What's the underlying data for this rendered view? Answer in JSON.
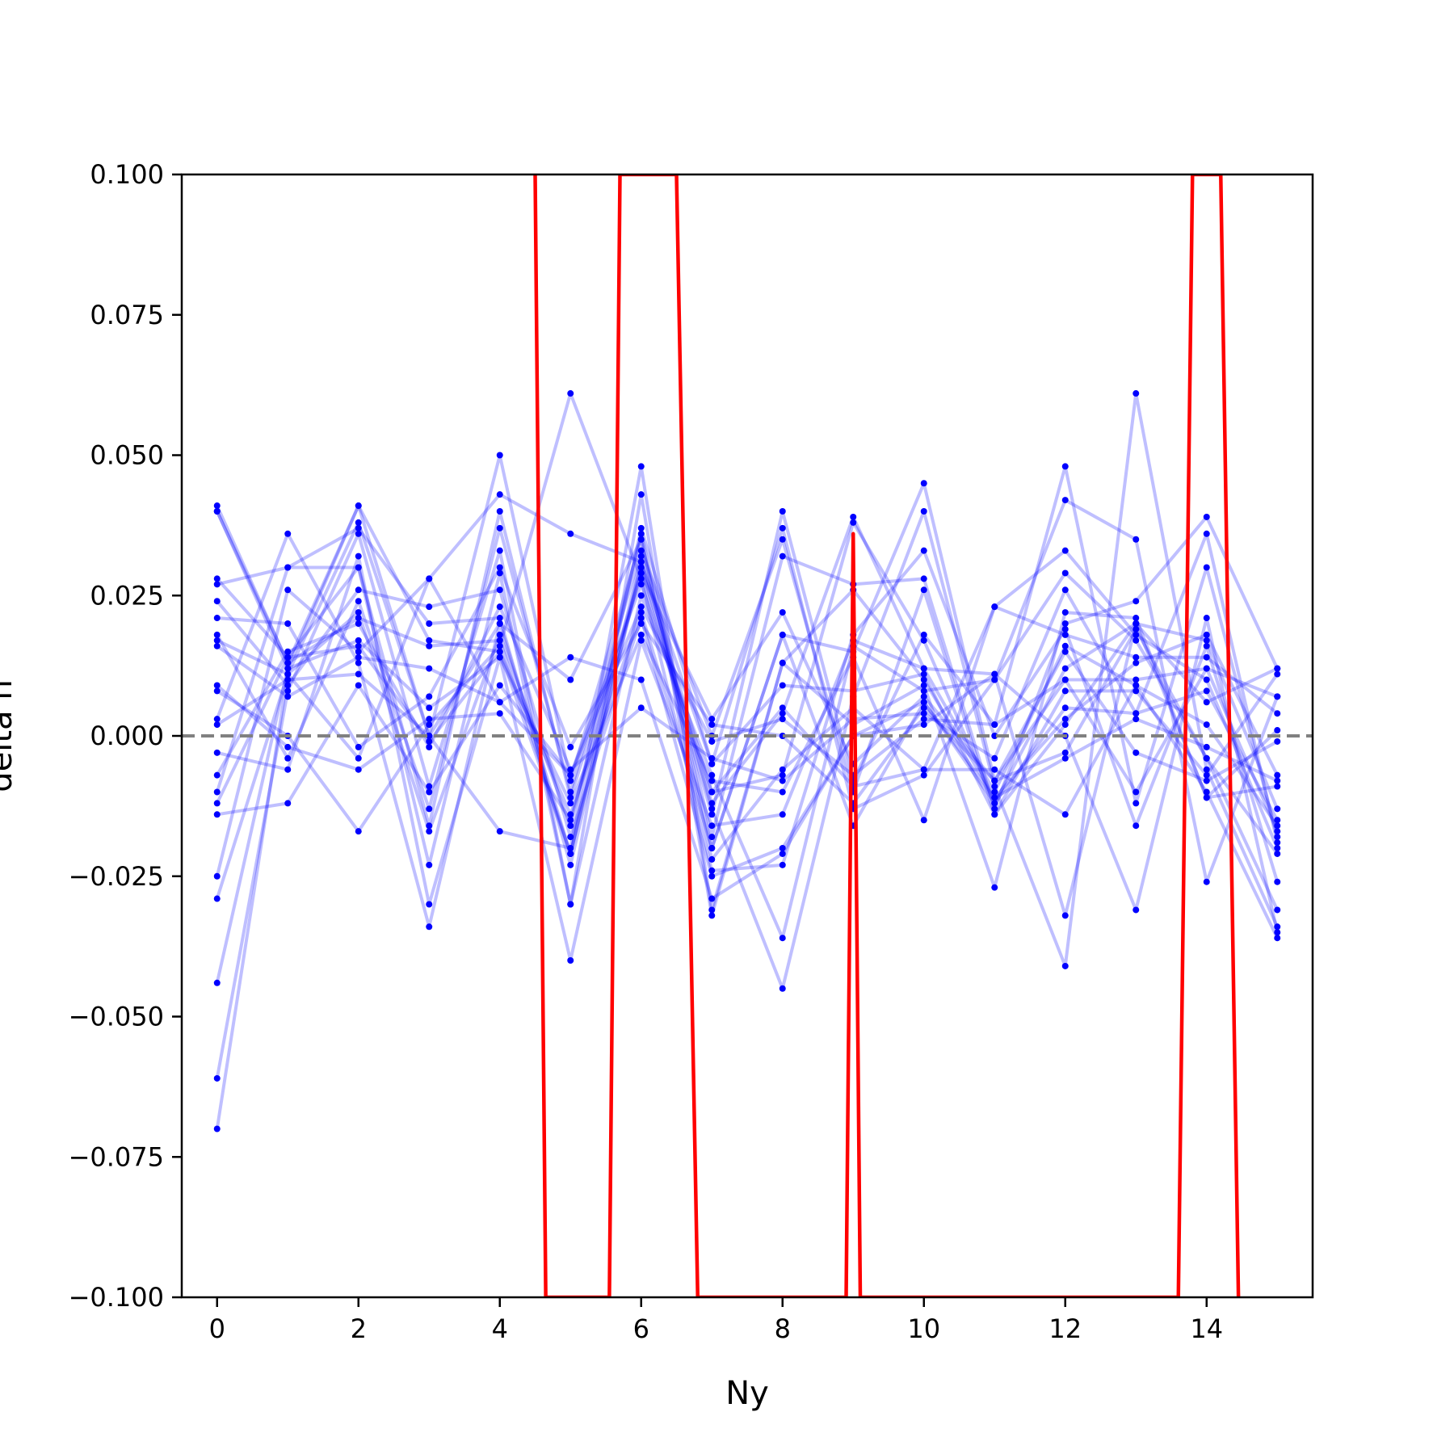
{
  "chart_data": {
    "type": "line",
    "title": "",
    "xlabel": "Ny",
    "ylabel": "delta n",
    "xlim": [
      -0.5,
      15.5
    ],
    "ylim": [
      -0.1,
      0.1
    ],
    "xticks": [
      0,
      2,
      4,
      6,
      8,
      10,
      12,
      14
    ],
    "xtick_labels": [
      "0",
      "2",
      "4",
      "6",
      "8",
      "10",
      "12",
      "14"
    ],
    "yticks": [
      0.1,
      0.075,
      0.05,
      0.025,
      0.0,
      -0.025,
      -0.05,
      -0.075,
      -0.1
    ],
    "ytick_labels": [
      "0.100",
      "0.075",
      "0.050",
      "0.025",
      "0.000",
      "−0.025",
      "−0.050",
      "−0.075",
      "−0.100"
    ],
    "grid": false,
    "reference_line": {
      "y": 0.0,
      "color": "#808080",
      "style": "dashed"
    },
    "colors": {
      "series": "#0000ff",
      "highlight": "#ff0000",
      "reference": "#808080"
    },
    "x": [
      0,
      1,
      2,
      3,
      4,
      5,
      6,
      7,
      8,
      9,
      10,
      11,
      12,
      13,
      14,
      15
    ],
    "series": [
      {
        "values": [
          0.04,
          0.012,
          0.041,
          0.017,
          0.015,
          -0.021,
          0.03,
          -0.012,
          0.004,
          0.039,
          0.012,
          -0.01,
          0.016,
          0.009,
          0.002,
          -0.016
        ]
      },
      {
        "values": [
          -0.07,
          0.011,
          0.038,
          0.0,
          0.05,
          -0.008,
          0.035,
          -0.02,
          0.018,
          0.015,
          0.045,
          -0.008,
          0.01,
          0.01,
          0.012,
          -0.017
        ]
      },
      {
        "values": [
          0.028,
          0.014,
          0.03,
          -0.016,
          0.04,
          -0.011,
          0.029,
          -0.014,
          0.04,
          -0.008,
          0.018,
          0.002,
          0.048,
          -0.012,
          0.03,
          -0.018
        ]
      },
      {
        "values": [
          -0.061,
          0.008,
          0.036,
          -0.009,
          0.033,
          -0.03,
          0.025,
          -0.007,
          -0.036,
          0.016,
          0.008,
          0.01,
          0.029,
          0.017,
          -0.004,
          -0.031
        ]
      },
      {
        "values": [
          0.017,
          0.011,
          0.022,
          -0.017,
          0.018,
          -0.016,
          0.036,
          -0.018,
          0.032,
          0.027,
          0.028,
          -0.013,
          0.02,
          0.024,
          0.039,
          0.012
        ]
      },
      {
        "values": [
          0.024,
          0.009,
          0.026,
          0.023,
          0.026,
          -0.018,
          0.021,
          -0.025,
          -0.02,
          0.0,
          0.002,
          0.011,
          -0.032,
          0.02,
          0.017,
          -0.013
        ]
      },
      {
        "values": [
          0.003,
          0.036,
          0.013,
          -0.034,
          0.02,
          -0.021,
          0.032,
          -0.013,
          -0.045,
          0.007,
          0.04,
          -0.009,
          -0.041,
          0.061,
          -0.006,
          -0.034
        ]
      },
      {
        "values": [
          -0.044,
          0.012,
          0.017,
          0.005,
          0.014,
          -0.012,
          0.018,
          -0.008,
          -0.01,
          0.014,
          -0.015,
          0.023,
          0.033,
          0.018,
          0.01,
          -0.02
        ]
      },
      {
        "values": [
          0.041,
          0.013,
          0.041,
          0.0,
          -0.017,
          -0.02,
          0.048,
          -0.031,
          0.013,
          0.002,
          0.009,
          -0.027,
          0.022,
          0.021,
          -0.011,
          -0.009
        ]
      },
      {
        "values": [
          -0.025,
          0.026,
          0.015,
          0.028,
          0.043,
          0.036,
          0.031,
          -0.005,
          0.037,
          -0.013,
          -0.007,
          0.01,
          0.042,
          0.035,
          -0.026,
          0.007
        ]
      },
      {
        "values": [
          -0.01,
          0.03,
          0.03,
          -0.023,
          0.029,
          -0.03,
          0.043,
          -0.032,
          0.013,
          0.026,
          0.01,
          -0.011,
          0.003,
          0.013,
          0.018,
          -0.007
        ]
      },
      {
        "values": [
          0.021,
          0.02,
          -0.002,
          0.007,
          0.03,
          -0.002,
          0.02,
          0.002,
          0.0,
          -0.012,
          0.005,
          -0.008,
          0.015,
          -0.003,
          -0.008,
          -0.001
        ]
      },
      {
        "values": [
          0.008,
          0.0,
          -0.017,
          0.002,
          0.016,
          0.061,
          0.028,
          -0.024,
          -0.023,
          0.018,
          0.033,
          0.0,
          0.019,
          -0.016,
          0.016,
          -0.026
        ]
      },
      {
        "values": [
          -0.014,
          -0.012,
          0.009,
          -0.01,
          0.009,
          -0.007,
          0.027,
          -0.01,
          0.005,
          -0.009,
          -0.006,
          -0.006,
          -0.014,
          0.009,
          -0.01,
          -0.036
        ]
      },
      {
        "values": [
          0.016,
          0.007,
          0.014,
          0.012,
          0.006,
          0.014,
          0.01,
          -0.029,
          -0.021,
          0.0,
          0.006,
          -0.012,
          0.005,
          0.004,
          0.036,
          -0.019
        ]
      },
      {
        "values": [
          -0.003,
          -0.006,
          0.032,
          -0.03,
          0.014,
          -0.04,
          0.017,
          -0.016,
          -0.014,
          0.017,
          0.012,
          0.011,
          0.0,
          -0.031,
          0.021,
          -0.035
        ]
      },
      {
        "values": [
          0.018,
          -0.004,
          0.024,
          -0.013,
          0.037,
          -0.01,
          0.033,
          0.0,
          0.035,
          -0.01,
          0.026,
          -0.014,
          0.008,
          0.008,
          -0.007,
          0.011
        ]
      },
      {
        "values": [
          -0.007,
          0.015,
          0.02,
          -0.002,
          0.023,
          -0.006,
          0.005,
          -0.004,
          -0.008,
          0.003,
          0.004,
          -0.004,
          0.026,
          0.004,
          0.008,
          -0.015
        ]
      },
      {
        "values": [
          0.009,
          -0.002,
          -0.006,
          0.003,
          0.004,
          -0.015,
          0.029,
          0.003,
          0.022,
          -0.005,
          0.007,
          -0.008,
          -0.003,
          0.019,
          -0.004,
          -0.021
        ]
      },
      {
        "values": [
          0.04,
          0.013,
          0.021,
          0.016,
          0.017,
          -0.021,
          0.037,
          -0.005,
          0.009,
          0.008,
          0.011,
          -0.014,
          0.002,
          0.02,
          0.006,
          0.012
        ]
      },
      {
        "values": [
          0.002,
          0.01,
          0.011,
          0.0,
          0.02,
          0.01,
          0.035,
          -0.022,
          -0.006,
          0.005,
          -0.006,
          0.023,
          0.018,
          0.014,
          0.014,
          0.004
        ]
      },
      {
        "values": [
          -0.012,
          0.014,
          0.016,
          -0.001,
          0.015,
          -0.014,
          0.022,
          -0.02,
          0.018,
          -0.016,
          0.006,
          -0.011,
          -0.004,
          0.003,
          -0.002,
          -0.008
        ]
      },
      {
        "values": [
          0.027,
          0.03,
          0.037,
          0.02,
          0.021,
          -0.023,
          0.031,
          -0.01,
          -0.007,
          0.038,
          0.017,
          -0.012,
          0.012,
          0.02,
          -0.011,
          0.001
        ]
      },
      {
        "values": [
          -0.029,
          0.011,
          -0.004,
          0.028,
          0.006,
          -0.007,
          0.023,
          -0.001,
          0.003,
          -0.007,
          0.003,
          0.002,
          0.01,
          -0.01,
          0.012,
          0.007
        ]
      }
    ],
    "highlight": {
      "x": [
        4.5,
        4.65,
        5.55,
        5.7,
        6.5,
        6.8,
        8.9,
        9.0,
        9.1,
        13.6,
        13.8,
        14.2,
        14.45
      ],
      "values": [
        0.1,
        -0.1,
        -0.1,
        0.1,
        0.1,
        -0.1,
        -0.1,
        0.036,
        -0.1,
        -0.1,
        0.1,
        0.1,
        -0.1
      ]
    }
  }
}
